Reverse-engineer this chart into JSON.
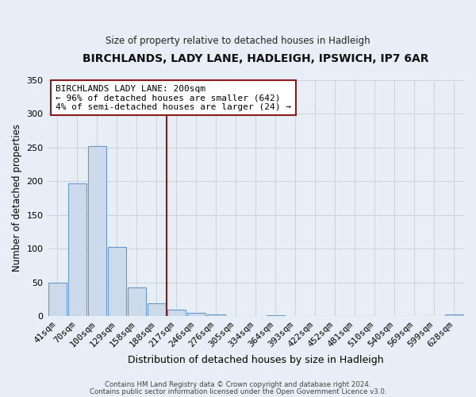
{
  "title": "BIRCHLANDS, LADY LANE, HADLEIGH, IPSWICH, IP7 6AR",
  "subtitle": "Size of property relative to detached houses in Hadleigh",
  "xlabel": "Distribution of detached houses by size in Hadleigh",
  "ylabel": "Number of detached properties",
  "bin_labels": [
    "41sqm",
    "70sqm",
    "100sqm",
    "129sqm",
    "158sqm",
    "188sqm",
    "217sqm",
    "246sqm",
    "276sqm",
    "305sqm",
    "334sqm",
    "364sqm",
    "393sqm",
    "422sqm",
    "452sqm",
    "481sqm",
    "510sqm",
    "540sqm",
    "569sqm",
    "599sqm",
    "628sqm"
  ],
  "bar_values": [
    50,
    197,
    252,
    103,
    43,
    19,
    10,
    5,
    2,
    0,
    0,
    1,
    0,
    0,
    0,
    0,
    0,
    0,
    0,
    0,
    2
  ],
  "bar_color": "#cddaeb",
  "bar_edge_color": "#6699cc",
  "vline_x": 5.5,
  "vline_color": "#8b1a1a",
  "ylim": [
    0,
    350
  ],
  "yticks": [
    0,
    50,
    100,
    150,
    200,
    250,
    300,
    350
  ],
  "annotation_title": "BIRCHLANDS LADY LANE: 200sqm",
  "annotation_line1": "← 96% of detached houses are smaller (642)",
  "annotation_line2": "4% of semi-detached houses are larger (24) →",
  "annotation_box_color": "#ffffff",
  "annotation_box_edge": "#8b1a1a",
  "footer1": "Contains HM Land Registry data © Crown copyright and database right 2024.",
  "footer2": "Contains public sector information licensed under the Open Government Licence v3.0.",
  "background_color": "#e8eef5",
  "plot_background": "#e8eef5",
  "grid_color": "#c5d0dc"
}
